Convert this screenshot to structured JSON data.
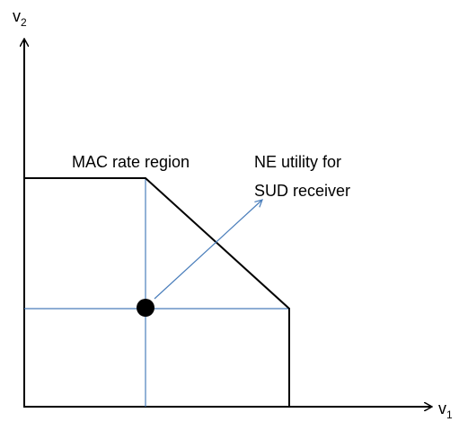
{
  "axes": {
    "y_label": {
      "base": "v",
      "subscript": "2"
    },
    "x_label": {
      "base": "v",
      "subscript": "1"
    }
  },
  "labels": {
    "region": "MAC rate region",
    "ne_utility": [
      "NE utility for",
      "SUD receiver"
    ]
  }
}
